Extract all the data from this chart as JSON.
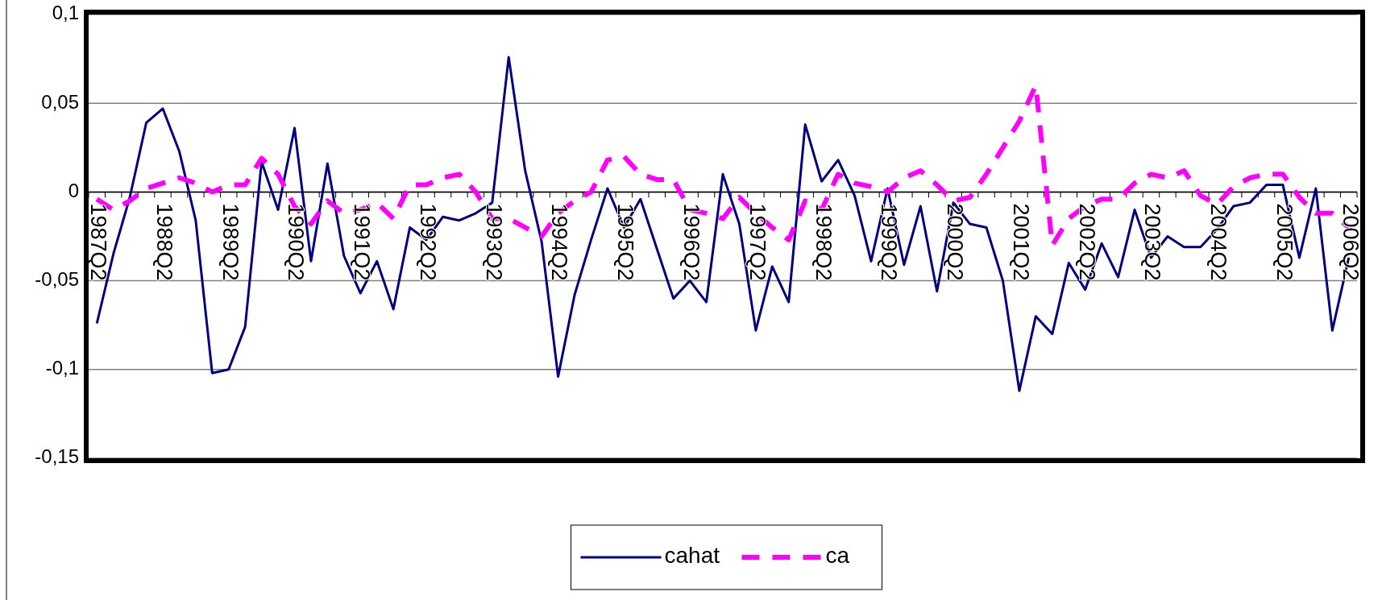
{
  "chart_data": {
    "type": "line",
    "categories": [
      "1987Q2",
      null,
      null,
      null,
      "1988Q2",
      null,
      null,
      null,
      "1989Q2",
      null,
      null,
      null,
      "1990Q2",
      null,
      null,
      null,
      "1991Q2",
      null,
      null,
      null,
      "1992Q2",
      null,
      null,
      null,
      "1993Q2",
      null,
      null,
      null,
      "1994Q2",
      null,
      null,
      null,
      "1995Q2",
      null,
      null,
      null,
      "1996Q2",
      null,
      null,
      null,
      "1997Q2",
      null,
      null,
      null,
      "1998Q2",
      null,
      null,
      null,
      "1999Q2",
      null,
      null,
      null,
      "2000Q2",
      null,
      null,
      null,
      "2001Q2",
      null,
      null,
      null,
      "2002Q2",
      null,
      null,
      null,
      "2003Q2",
      null,
      null,
      null,
      "2004Q2",
      null,
      null,
      null,
      "2005Q2",
      null,
      null,
      null,
      "2006Q2"
    ],
    "series": [
      {
        "name": "cahat",
        "color": "#000080",
        "line_style": "solid",
        "values": [
          -0.074,
          -0.035,
          -0.003,
          0.039,
          0.047,
          0.023,
          -0.016,
          -0.102,
          -0.1,
          -0.076,
          0.017,
          -0.01,
          0.036,
          -0.039,
          0.016,
          -0.036,
          -0.057,
          -0.039,
          -0.066,
          -0.02,
          -0.027,
          -0.014,
          -0.016,
          -0.012,
          -0.006,
          0.076,
          0.012,
          -0.028,
          -0.104,
          -0.058,
          -0.027,
          0.002,
          -0.02,
          -0.004,
          -0.032,
          -0.06,
          -0.05,
          -0.062,
          0.01,
          -0.018,
          -0.078,
          -0.042,
          -0.062,
          0.038,
          0.006,
          0.018,
          -0.002,
          -0.039,
          0.002,
          -0.041,
          -0.008,
          -0.056,
          -0.006,
          -0.018,
          -0.02,
          -0.05,
          -0.112,
          -0.07,
          -0.08,
          -0.04,
          -0.055,
          -0.029,
          -0.048,
          -0.01,
          -0.037,
          -0.025,
          -0.031,
          -0.031,
          -0.021,
          -0.008,
          -0.006,
          0.004,
          0.004,
          -0.037,
          0.002,
          -0.078,
          -0.037
        ]
      },
      {
        "name": "ca",
        "color": "#ff00ff",
        "line_style": "dashed",
        "values": [
          -0.004,
          -0.01,
          -0.005,
          0.002,
          0.005,
          0.008,
          0.005,
          0.0,
          0.004,
          0.004,
          0.019,
          0.01,
          -0.008,
          -0.018,
          -0.005,
          -0.012,
          -0.01,
          -0.006,
          -0.015,
          0.004,
          0.004,
          0.008,
          0.01,
          0.0,
          -0.015,
          -0.015,
          -0.02,
          -0.025,
          -0.012,
          -0.005,
          0.0,
          0.018,
          0.02,
          0.01,
          0.007,
          0.007,
          -0.01,
          -0.012,
          -0.015,
          -0.003,
          -0.012,
          -0.02,
          -0.027,
          -0.005,
          -0.01,
          0.01,
          0.005,
          0.003,
          0.0,
          0.008,
          0.012,
          0.004,
          -0.005,
          -0.003,
          0.01,
          0.025,
          0.04,
          0.06,
          -0.03,
          -0.015,
          -0.008,
          -0.004,
          -0.004,
          0.005,
          0.01,
          0.008,
          0.012,
          -0.002,
          -0.007,
          0.003,
          0.008,
          0.01,
          0.01,
          -0.003,
          -0.012,
          -0.012,
          -0.02
        ]
      }
    ],
    "ylim": [
      -0.15,
      0.1
    ],
    "yticks": [
      {
        "value": 0.1,
        "label": "0,1"
      },
      {
        "value": 0.05,
        "label": "0,05"
      },
      {
        "value": 0,
        "label": "0"
      },
      {
        "value": -0.05,
        "label": "-0,05"
      },
      {
        "value": -0.1,
        "label": "-0,1"
      },
      {
        "value": -0.15,
        "label": "-0,15"
      }
    ],
    "grid": "y",
    "legend": "bottom"
  }
}
